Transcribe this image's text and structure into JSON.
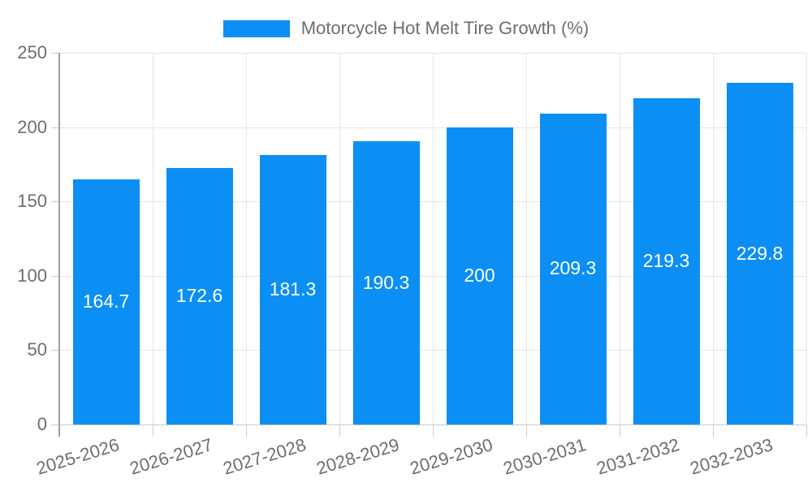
{
  "chart_data": {
    "type": "bar",
    "title": "Motorcycle Hot Melt Tire Growth (%)",
    "categories": [
      "2025-2026",
      "2026-2027",
      "2027-2028",
      "2028-2029",
      "2029-2030",
      "2030-2031",
      "2031-2032",
      "2032-2033"
    ],
    "values": [
      164.7,
      172.6,
      181.3,
      190.3,
      200,
      209.3,
      219.3,
      229.8
    ],
    "xlabel": "",
    "ylabel": "",
    "ylim": [
      0,
      250
    ],
    "ytick_step": 50,
    "yticks": [
      0,
      50,
      100,
      150,
      200,
      250
    ],
    "grid": true,
    "legend_position": "top-center",
    "value_labels": "inside-center",
    "x_label_rotation_deg": -17
  },
  "colors": {
    "bar": "#0b8ff5",
    "grid": "#e6e6e6",
    "baseline": "#c9c9c9",
    "axis": "#9e9e9e",
    "tick": "#cccccc",
    "text": "#6e6e6e",
    "value_label": "#ffffff",
    "background": "#ffffff"
  }
}
